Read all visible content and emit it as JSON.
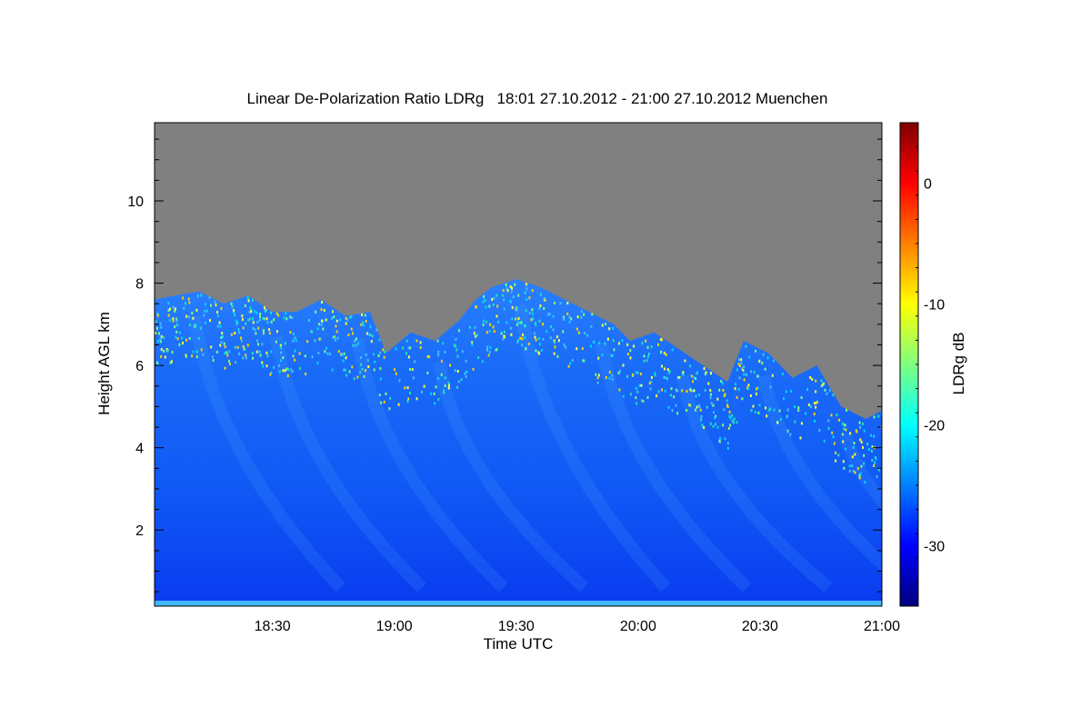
{
  "chart_data": {
    "type": "heatmap",
    "title": "Linear De-Polarization Ratio LDRg   18:01 27.10.2012 - 21:00 27.10.2012 Muenchen",
    "xlabel": "Time UTC",
    "ylabel": "Height AGL km",
    "x_ticks": [
      "18:30",
      "19:00",
      "19:30",
      "20:00",
      "20:30",
      "21:00"
    ],
    "x_tick_minutes": [
      1110,
      1140,
      1170,
      1200,
      1230,
      1260
    ],
    "xlim_minutes": [
      1081,
      1260
    ],
    "ylim": [
      0.15,
      11.9
    ],
    "y_ticks": [
      2,
      4,
      6,
      8,
      10
    ],
    "colorbar": {
      "label": "LDRg dB",
      "ticks": [
        0,
        -10,
        -20,
        -30
      ],
      "range": [
        -35,
        5
      ],
      "colormap": [
        "#00007f",
        "#0000ff",
        "#007fff",
        "#00ffff",
        "#7fff7f",
        "#ffff00",
        "#ff7f00",
        "#ff0000",
        "#7f0000"
      ]
    },
    "no_signal_color": "#808080",
    "cloud_top_km": [
      {
        "time": 1081,
        "top": 7.6
      },
      {
        "time": 1086,
        "top": 7.7
      },
      {
        "time": 1092,
        "top": 7.8
      },
      {
        "time": 1098,
        "top": 7.5
      },
      {
        "time": 1104,
        "top": 7.7
      },
      {
        "time": 1110,
        "top": 7.3
      },
      {
        "time": 1116,
        "top": 7.3
      },
      {
        "time": 1122,
        "top": 7.6
      },
      {
        "time": 1128,
        "top": 7.2
      },
      {
        "time": 1134,
        "top": 7.3
      },
      {
        "time": 1138,
        "top": 6.3
      },
      {
        "time": 1144,
        "top": 6.8
      },
      {
        "time": 1150,
        "top": 6.6
      },
      {
        "time": 1156,
        "top": 7.1
      },
      {
        "time": 1160,
        "top": 7.6
      },
      {
        "time": 1164,
        "top": 7.9
      },
      {
        "time": 1170,
        "top": 8.1
      },
      {
        "time": 1176,
        "top": 7.9
      },
      {
        "time": 1182,
        "top": 7.6
      },
      {
        "time": 1188,
        "top": 7.3
      },
      {
        "time": 1194,
        "top": 7.0
      },
      {
        "time": 1198,
        "top": 6.6
      },
      {
        "time": 1204,
        "top": 6.8
      },
      {
        "time": 1210,
        "top": 6.4
      },
      {
        "time": 1216,
        "top": 6.0
      },
      {
        "time": 1222,
        "top": 5.6
      },
      {
        "time": 1226,
        "top": 6.6
      },
      {
        "time": 1232,
        "top": 6.3
      },
      {
        "time": 1238,
        "top": 5.7
      },
      {
        "time": 1244,
        "top": 6.0
      },
      {
        "time": 1250,
        "top": 5.0
      },
      {
        "time": 1256,
        "top": 4.7
      },
      {
        "time": 1260,
        "top": 4.9
      }
    ]
  }
}
